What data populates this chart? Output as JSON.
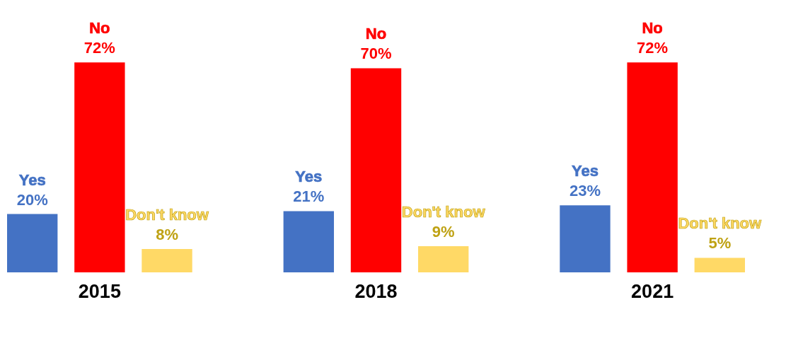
{
  "chart_data": {
    "type": "bar",
    "categories": [
      "2015",
      "2018",
      "2021"
    ],
    "series": [
      {
        "name": "Yes",
        "color": "#4472c4",
        "values": [
          20,
          21,
          23
        ],
        "value_labels": [
          "20%",
          "21%",
          "23%"
        ]
      },
      {
        "name": "No",
        "color": "#ff0000",
        "values": [
          72,
          70,
          72
        ],
        "value_labels": [
          "72%",
          "70%",
          "72%"
        ]
      },
      {
        "name": "Don't know",
        "color": "#ffd966",
        "values": [
          8,
          9,
          5
        ],
        "value_labels": [
          "8%",
          "9%",
          "5%"
        ]
      }
    ],
    "legend": false,
    "grid": false
  }
}
